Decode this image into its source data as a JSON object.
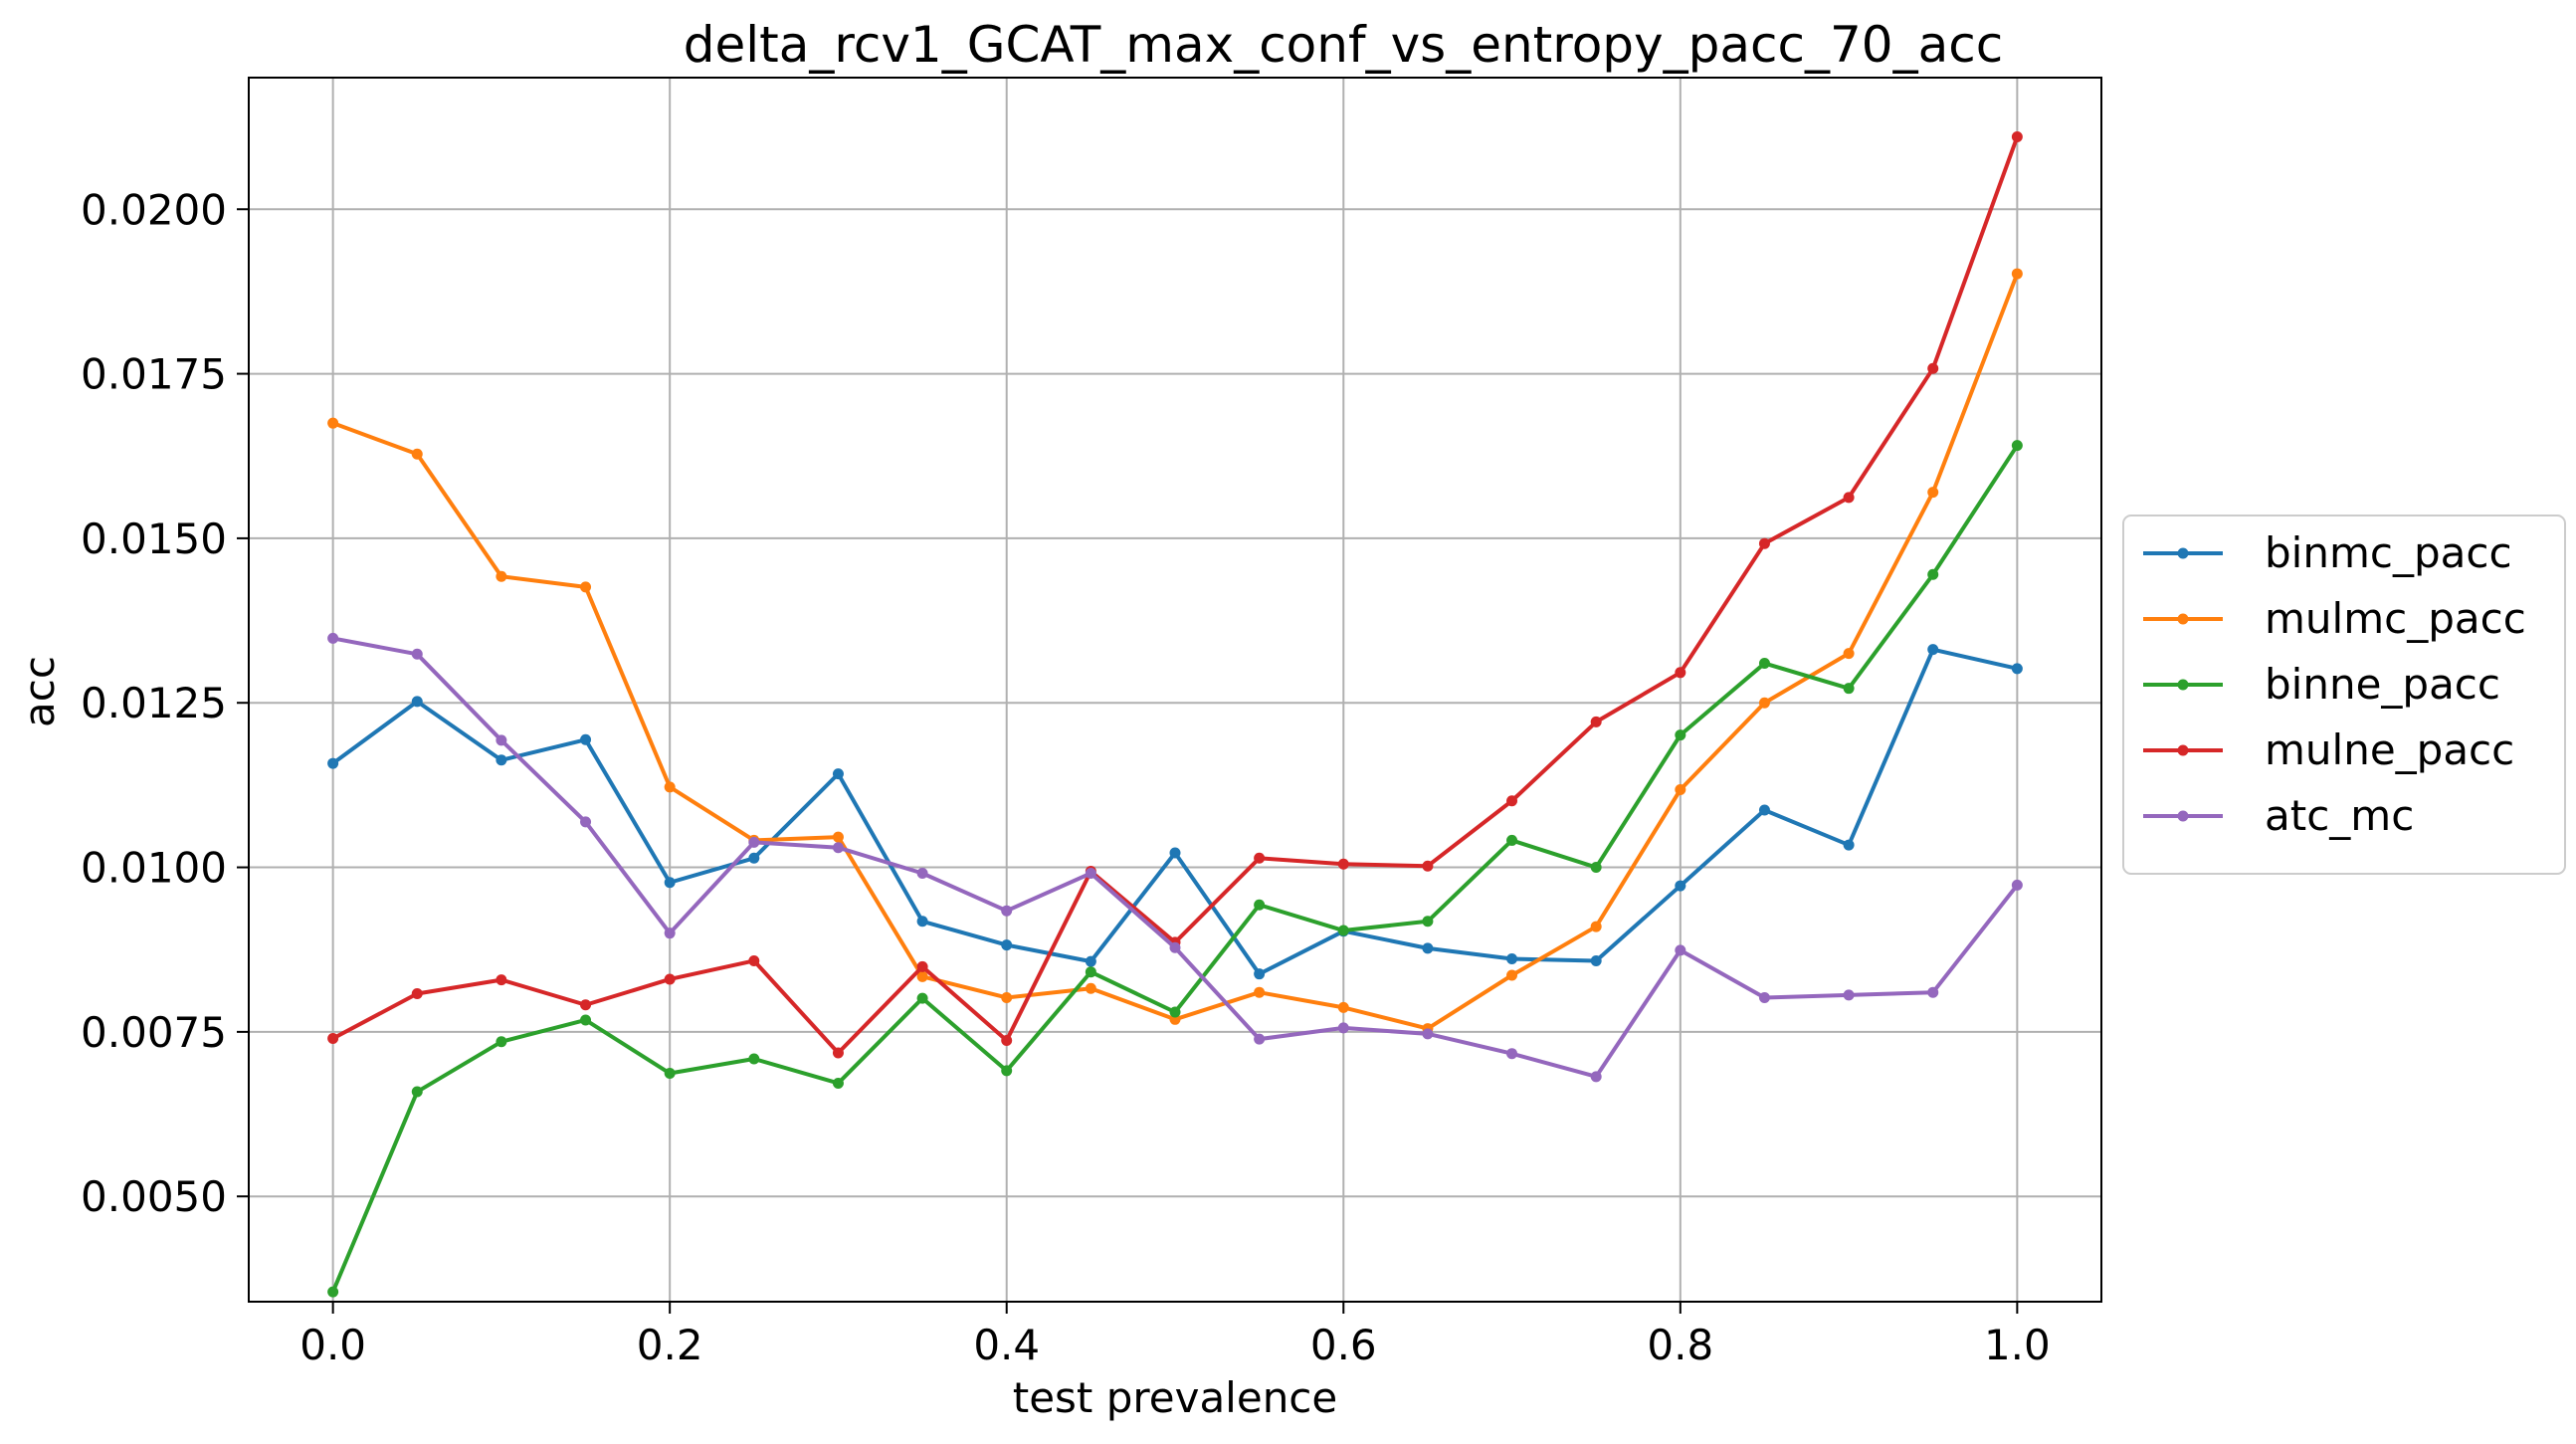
{
  "chart_data": {
    "type": "line",
    "title": "delta_rcv1_GCAT_max_conf_vs_entropy_pacc_70_acc",
    "xlabel": "test prevalence",
    "ylabel": "acc",
    "xlim": [
      -0.05,
      1.05
    ],
    "ylim": [
      0.0034,
      0.022
    ],
    "x_ticks": [
      0.0,
      0.2,
      0.4,
      0.6,
      0.8,
      1.0
    ],
    "x_tick_labels": [
      "0.0",
      "0.2",
      "0.4",
      "0.6",
      "0.8",
      "1.0"
    ],
    "y_ticks": [
      0.005,
      0.0075,
      0.01,
      0.0125,
      0.015,
      0.0175,
      0.02
    ],
    "y_tick_labels": [
      "0.0050",
      "0.0075",
      "0.0100",
      "0.0125",
      "0.0150",
      "0.0175",
      "0.0200"
    ],
    "grid": true,
    "legend_placement": "outside-right",
    "x": [
      0.0,
      0.05,
      0.1,
      0.15,
      0.2,
      0.25,
      0.3,
      0.35,
      0.4,
      0.45,
      0.5,
      0.55,
      0.6,
      0.65,
      0.7,
      0.75,
      0.8,
      0.85,
      0.9,
      0.95,
      1.0
    ],
    "series": [
      {
        "name": "binmc_pacc",
        "color": "#1f77b4",
        "values": [
          0.01158,
          0.01252,
          0.01163,
          0.01194,
          0.00977,
          0.01014,
          0.01142,
          0.00918,
          0.00882,
          0.00857,
          0.01022,
          0.00838,
          0.00903,
          0.00877,
          0.00861,
          0.00858,
          0.00972,
          0.01087,
          0.01034,
          0.01331,
          0.01302
        ]
      },
      {
        "name": "mulmc_pacc",
        "color": "#ff7f0e",
        "values": [
          0.01675,
          0.01628,
          0.01442,
          0.01426,
          0.01122,
          0.01041,
          0.01046,
          0.00834,
          0.00802,
          0.00816,
          0.00769,
          0.0081,
          0.00787,
          0.00755,
          0.00836,
          0.0091,
          0.01118,
          0.0125,
          0.01325,
          0.0157,
          0.01902
        ]
      },
      {
        "name": "binne_pacc",
        "color": "#2ca02c",
        "values": [
          0.00355,
          0.00659,
          0.00735,
          0.00768,
          0.00687,
          0.00709,
          0.00672,
          0.00801,
          0.00691,
          0.00841,
          0.0078,
          0.00943,
          0.00904,
          0.00918,
          0.01041,
          0.01,
          0.01201,
          0.0131,
          0.01272,
          0.01445,
          0.01641
        ]
      },
      {
        "name": "mulne_pacc",
        "color": "#d62728",
        "values": [
          0.0074,
          0.00808,
          0.00829,
          0.00791,
          0.0083,
          0.00858,
          0.00718,
          0.00849,
          0.00737,
          0.00994,
          0.00886,
          0.01014,
          0.01005,
          0.01002,
          0.01101,
          0.01221,
          0.01296,
          0.01492,
          0.01562,
          0.01758,
          0.0211
        ]
      },
      {
        "name": "atc_mc",
        "color": "#9467bd",
        "values": [
          0.01348,
          0.01324,
          0.01193,
          0.01069,
          0.009,
          0.01038,
          0.0103,
          0.00991,
          0.00934,
          0.00991,
          0.00878,
          0.00739,
          0.00756,
          0.00747,
          0.00717,
          0.00682,
          0.00874,
          0.00802,
          0.00806,
          0.0081,
          0.00973
        ]
      }
    ]
  }
}
